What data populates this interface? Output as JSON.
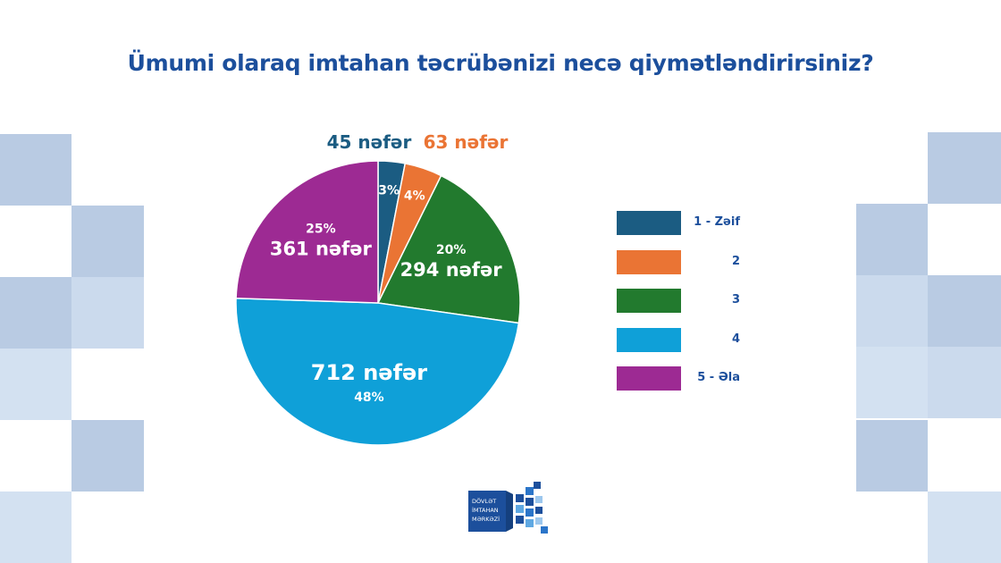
{
  "title": "Ümumi olaraq imtahan təcrübənizi necə qiymətləndirirsiniz?",
  "chart_data": {
    "type": "pie",
    "title": "Ümumi olaraq imtahan təcrübənizi necə qiymətləndirirsiniz?",
    "slices": [
      {
        "label": "1 - Zəif",
        "count": 45,
        "percent": 3,
        "count_label": "45 nəfər",
        "percent_label": "3%",
        "color": "#1b5c82"
      },
      {
        "label": "2",
        "count": 63,
        "percent": 4,
        "count_label": "63 nəfər",
        "percent_label": "4%",
        "color": "#ea7434"
      },
      {
        "label": "3",
        "count": 294,
        "percent": 20,
        "count_label": "294 nəfər",
        "percent_label": "20%",
        "color": "#227a2e"
      },
      {
        "label": "4",
        "count": 712,
        "percent": 48,
        "count_label": "712 nəfər",
        "percent_label": "48%",
        "color": "#0fa0d8"
      },
      {
        "label": "5 - Əla",
        "count": 361,
        "percent": 25,
        "count_label": "361 nəfər",
        "percent_label": "25%",
        "color": "#9d2a93"
      }
    ],
    "legend_position": "right"
  },
  "logo": {
    "lines": [
      "DÖVLƏT",
      "İMTAHAN",
      "MƏRKƏZİ"
    ],
    "color": "#1c4f9c"
  },
  "colors": {
    "title": "#1c4f9c",
    "deco_dark": "#b9cbe3",
    "deco_light": "#d3e1f1"
  }
}
